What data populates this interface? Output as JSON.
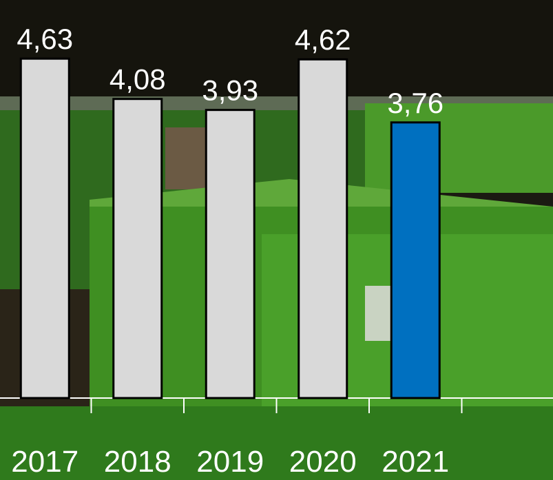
{
  "chart_data": {
    "type": "bar",
    "categories": [
      "2017",
      "2018",
      "2019",
      "2020",
      "2021"
    ],
    "values": [
      4.63,
      4.08,
      3.93,
      4.62,
      3.76
    ],
    "value_labels": [
      "4,63",
      "4,08",
      "3,93",
      "4,62",
      "3,76"
    ],
    "colors": [
      "#d9d9d9",
      "#d9d9d9",
      "#d9d9d9",
      "#d9d9d9",
      "#0070c0"
    ],
    "ylim": [
      0,
      5.43
    ]
  }
}
